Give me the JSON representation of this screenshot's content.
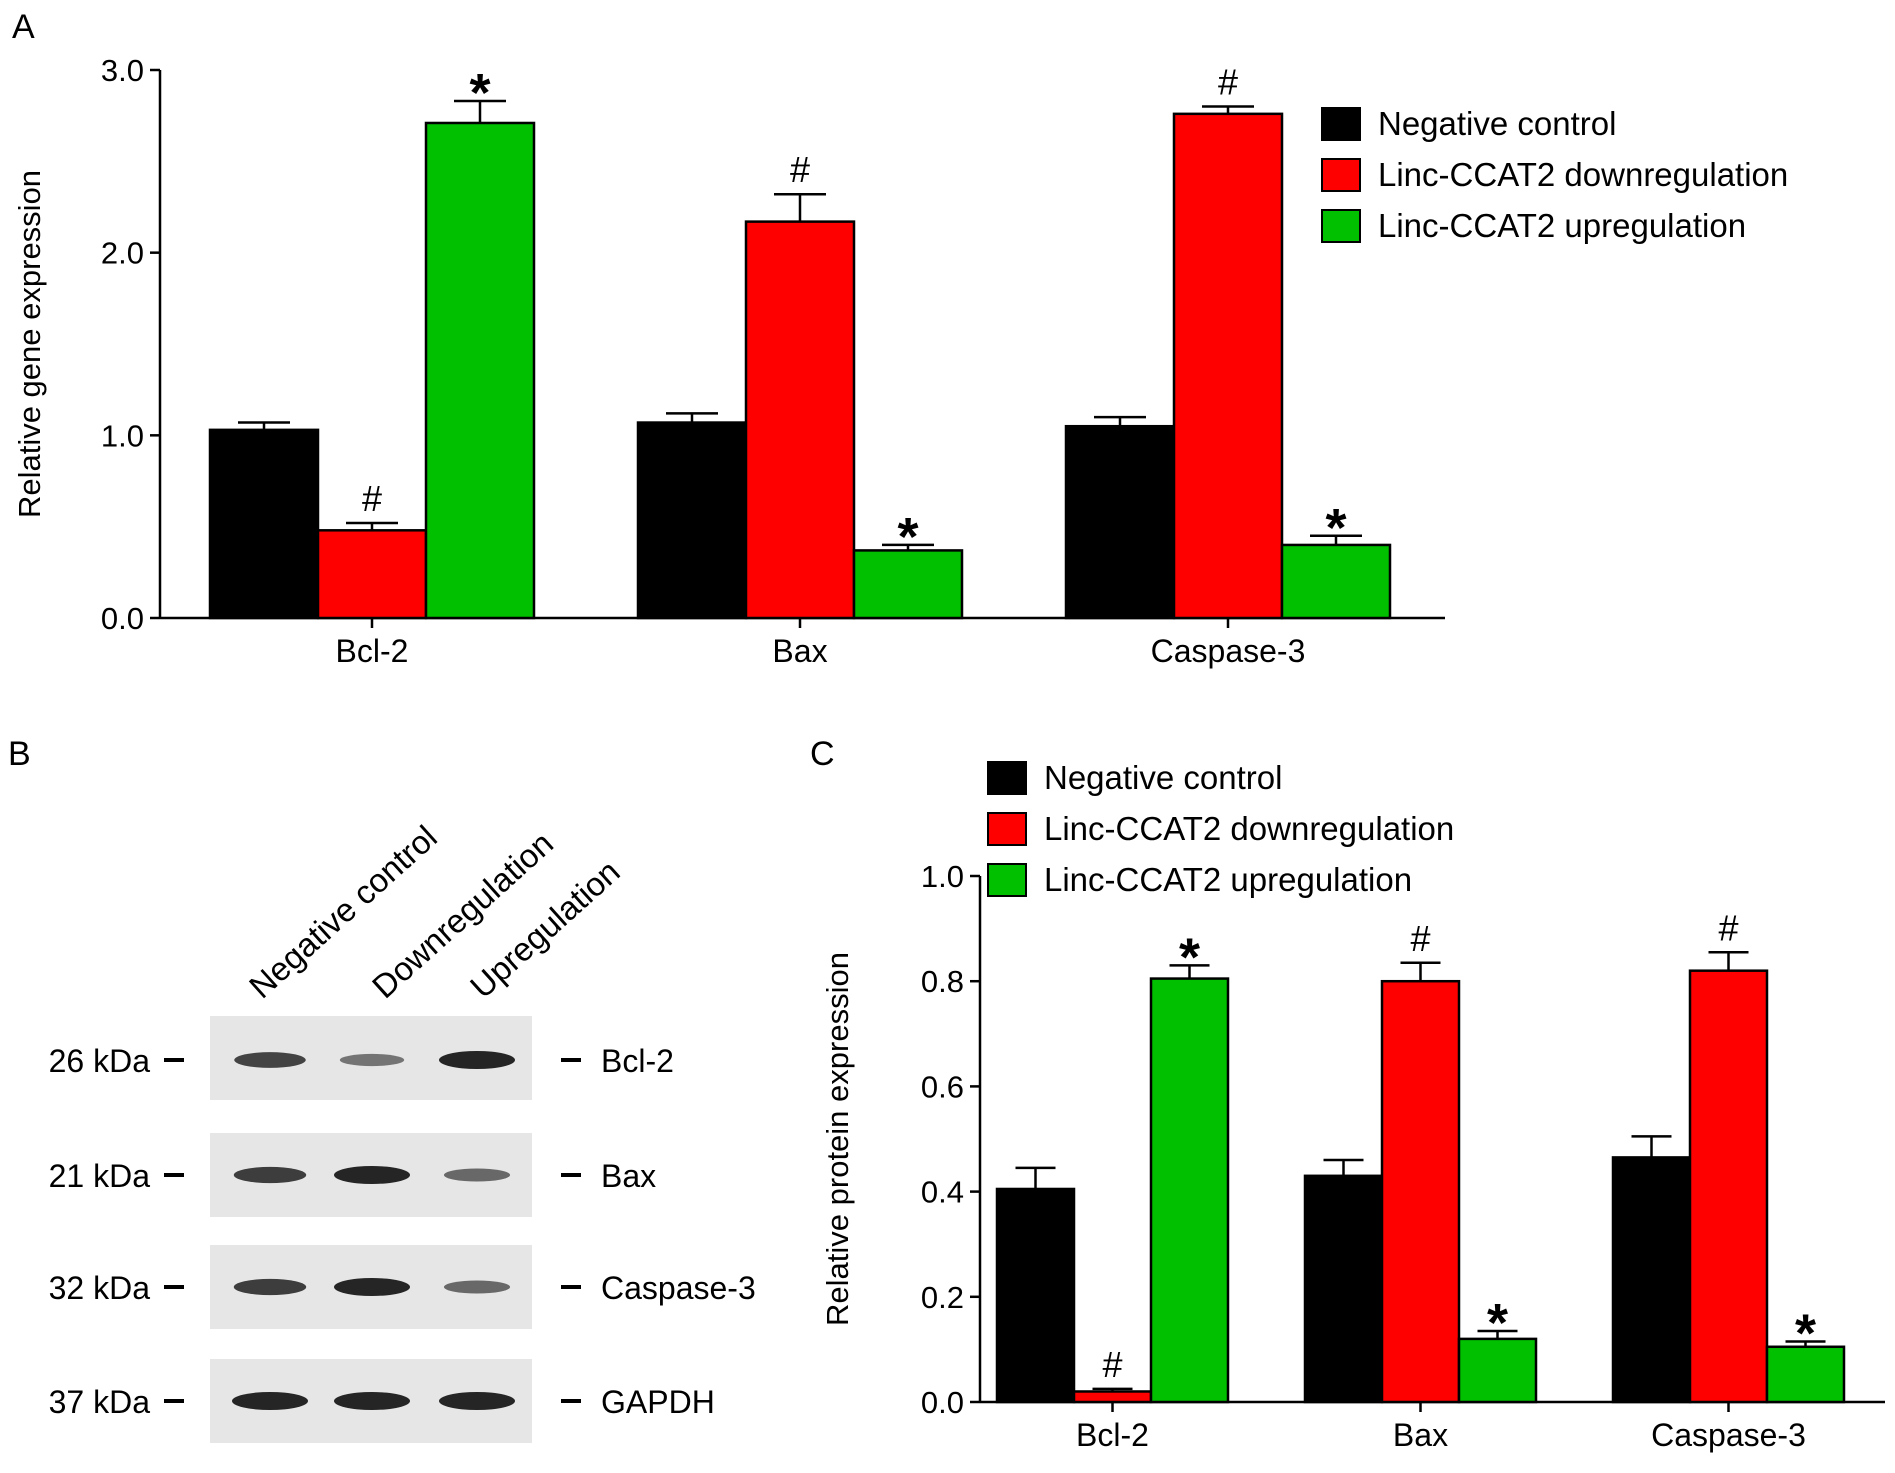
{
  "panel_labels": {
    "a": "A",
    "b": "B",
    "c": "C"
  },
  "colors": {
    "negative": "#000000",
    "down": "#ff0000",
    "up": "#00c000",
    "blot_bg": "#e6e6e6",
    "band": "#1a1a1a"
  },
  "chart_data": [
    {
      "panel": "A",
      "type": "bar",
      "ylabel": "Relative gene expression",
      "ylim": [
        0,
        3.0
      ],
      "yticks": [
        "0.0",
        "1.0",
        "2.0",
        "3.0"
      ],
      "categories": [
        "Bcl-2",
        "Bax",
        "Caspase-3"
      ],
      "series": [
        {
          "name": "Negative control",
          "values": [
            1.03,
            1.07,
            1.05
          ],
          "errors": [
            0.04,
            0.05,
            0.05
          ],
          "marks": [
            "",
            "",
            ""
          ]
        },
        {
          "name": "Linc-CCAT2 downregulation",
          "values": [
            0.48,
            2.17,
            2.76
          ],
          "errors": [
            0.04,
            0.15,
            0.04
          ],
          "marks": [
            "#",
            "#",
            "#"
          ]
        },
        {
          "name": "Linc-CCAT2 upregulation",
          "values": [
            2.71,
            0.37,
            0.4
          ],
          "errors": [
            0.12,
            0.03,
            0.05
          ],
          "marks": [
            "*",
            "*",
            "*"
          ]
        }
      ],
      "legend": "top-right"
    },
    {
      "panel": "C",
      "type": "bar",
      "ylabel": "Relative protein expression",
      "ylim": [
        0,
        1.0
      ],
      "yticks": [
        "0.0",
        "0.2",
        "0.4",
        "0.6",
        "0.8",
        "1.0"
      ],
      "categories": [
        "Bcl-2",
        "Bax",
        "Caspase-3"
      ],
      "series": [
        {
          "name": "Negative control",
          "values": [
            0.405,
            0.43,
            0.465
          ],
          "errors": [
            0.04,
            0.03,
            0.04
          ],
          "marks": [
            "",
            "",
            ""
          ]
        },
        {
          "name": "Linc-CCAT2 downregulation",
          "values": [
            0.02,
            0.8,
            0.82
          ],
          "errors": [
            0.005,
            0.035,
            0.035
          ],
          "marks": [
            "#",
            "#",
            "#"
          ]
        },
        {
          "name": "Linc-CCAT2 upregulation",
          "values": [
            0.805,
            0.12,
            0.105
          ],
          "errors": [
            0.025,
            0.015,
            0.01
          ],
          "marks": [
            "*",
            "*",
            "*"
          ]
        }
      ],
      "legend": "top"
    }
  ],
  "blot": {
    "lane_labels": [
      "Negative control",
      "Downregulation",
      "Upregulation"
    ],
    "rows": [
      {
        "kda": "26 kDa",
        "protein": "Bcl-2",
        "intensity": [
          0.75,
          0.35,
          1.0
        ]
      },
      {
        "kda": "21 kDa",
        "protein": "Bax",
        "intensity": [
          0.8,
          1.0,
          0.45
        ]
      },
      {
        "kda": "32 kDa",
        "protein": "Caspase-3",
        "intensity": [
          0.8,
          1.0,
          0.45
        ]
      },
      {
        "kda": "37 kDa",
        "protein": "GAPDH",
        "intensity": [
          1.0,
          1.0,
          1.0
        ]
      }
    ]
  }
}
